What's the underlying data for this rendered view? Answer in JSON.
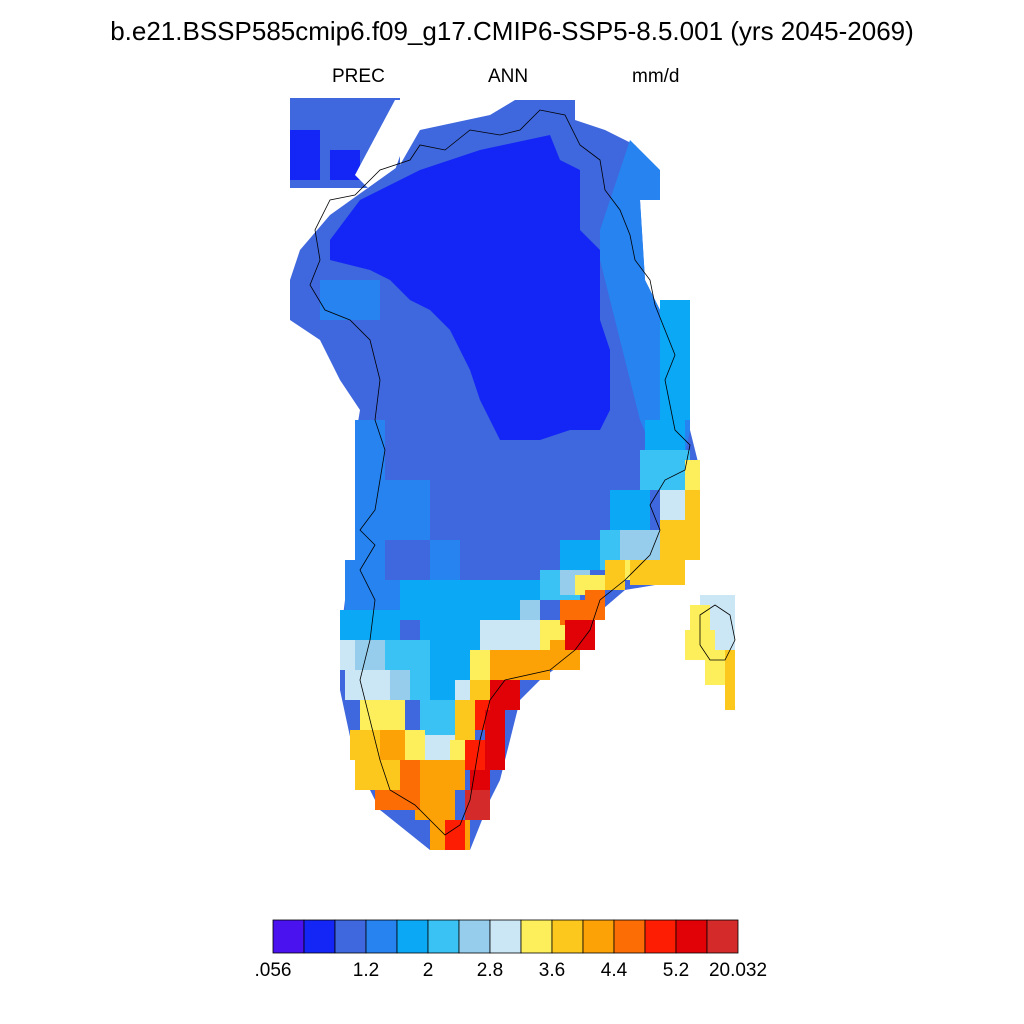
{
  "title": "b.e21.BSSP585cmip6.f09_g17.CMIP6-SSP5-8.5.001 (yrs 2045-2069)",
  "subtitle": {
    "variable": "PREC",
    "season": "ANN",
    "units": "mm/d"
  },
  "colorbar": {
    "colors": [
      "#4a12ee",
      "#1426f5",
      "#3f67de",
      "#2683ef",
      "#0aa8f5",
      "#3bc2f5",
      "#97cdec",
      "#cbe6f5",
      "#fdef5c",
      "#fdc81e",
      "#fca106",
      "#fd6d05",
      "#fd1d03",
      "#e10207",
      "#d42b2a"
    ],
    "labels": [
      ".056",
      "1.2",
      "2",
      "2.8",
      "3.6",
      "4.4",
      "5.2",
      "20.032"
    ]
  }
}
